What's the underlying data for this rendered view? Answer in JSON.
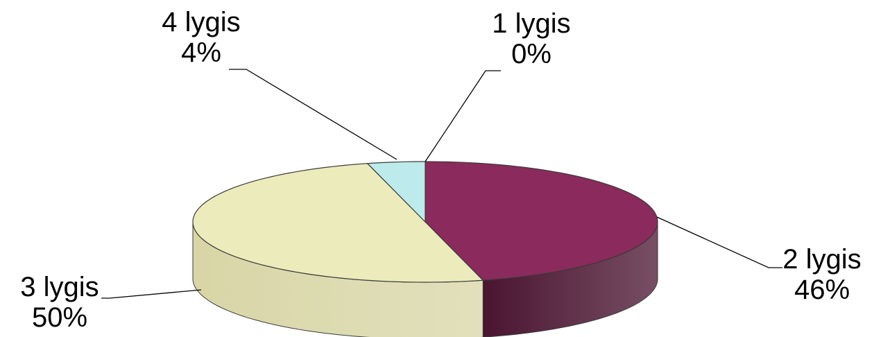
{
  "chart_data": {
    "type": "pie",
    "style": "3d",
    "categories": [
      "1 lygis",
      "2 lygis",
      "3 lygis",
      "4 lygis"
    ],
    "values": [
      0,
      46,
      50,
      4
    ],
    "value_labels": [
      "0%",
      "46%",
      "50%",
      "4%"
    ],
    "colors": [
      "#7fd3d8",
      "#8b2a5c",
      "#ecebbb",
      "#bdeaea"
    ],
    "side_colors": [
      "#4f9ba0",
      "#4a1430",
      "#d8d6a6",
      "#8fc7c9"
    ],
    "title": "",
    "legend": "none"
  }
}
